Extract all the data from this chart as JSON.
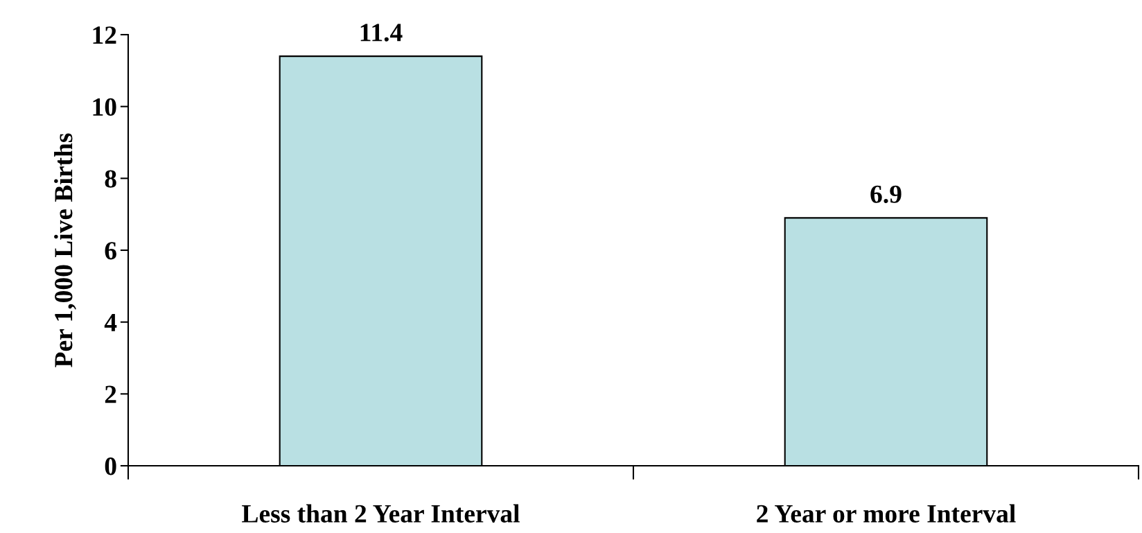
{
  "chart_data": {
    "type": "bar",
    "ylabel": "Per 1,000 Live Births",
    "categories": [
      "Less than 2 Year Interval",
      "2 Year or more Interval"
    ],
    "values": [
      11.4,
      6.9
    ],
    "color": "#b9e0e3",
    "ylim": [
      0,
      12
    ],
    "yticks": [
      0,
      2,
      4,
      6,
      8,
      10,
      12
    ],
    "data_labels": true,
    "grid": false,
    "legend": false
  }
}
